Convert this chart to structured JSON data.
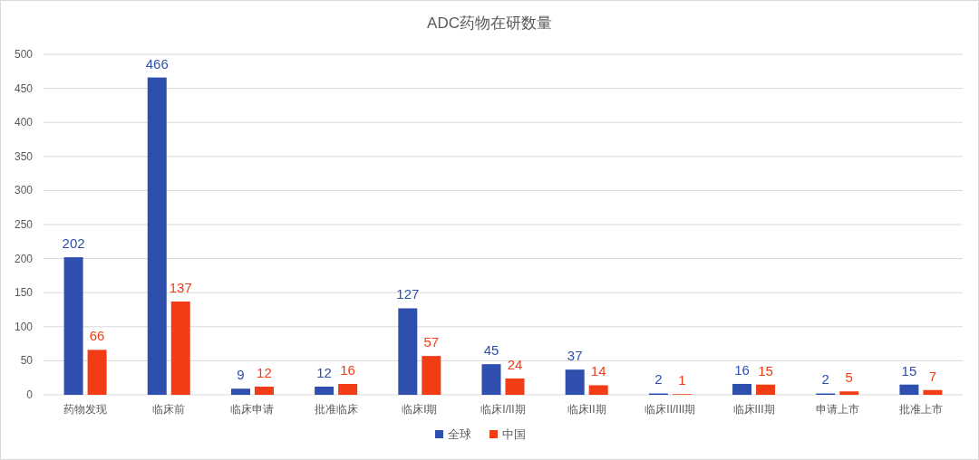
{
  "chart_data": {
    "type": "bar",
    "title": "ADC药物在研数量",
    "categories": [
      "药物发现",
      "临床前",
      "临床申请",
      "批准临床",
      "临床I期",
      "临床I/II期",
      "临床II期",
      "临床II/III期",
      "临床III期",
      "申请上市",
      "批准上市"
    ],
    "series": [
      {
        "name": "全球",
        "color": "#2e4fae",
        "values": [
          202,
          466,
          9,
          12,
          127,
          45,
          37,
          2,
          16,
          2,
          15
        ]
      },
      {
        "name": "中国",
        "color": "#f23c16",
        "values": [
          66,
          137,
          12,
          16,
          57,
          24,
          14,
          1,
          15,
          5,
          7
        ]
      }
    ],
    "ylim": [
      0,
      500
    ],
    "yticks": [
      0,
      50,
      100,
      150,
      200,
      250,
      300,
      350,
      400,
      450,
      500
    ],
    "grid": "y",
    "legend": "bottom",
    "data_labels": true
  }
}
